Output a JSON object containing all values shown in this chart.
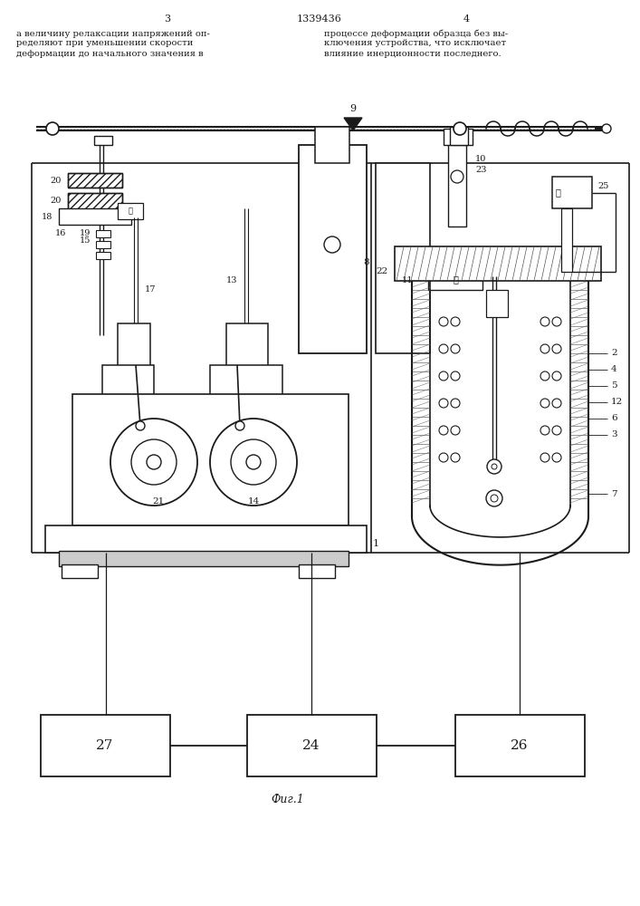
{
  "bg": "#ffffff",
  "lc": "#1a1a1a",
  "page_left": "3",
  "page_center": "1339436",
  "page_right": "4",
  "tl1": "а величину релаксации напряжений оп-",
  "tl2": "ределяют при уменьшении скорости",
  "tl3": "деформации до начального значения в",
  "tr1": "процессе деформации образца без вы-",
  "tr2": "ключения устройства, что исключает",
  "tr3": "влияние инерционности последнего.",
  "fig_label": "Фиг.1"
}
